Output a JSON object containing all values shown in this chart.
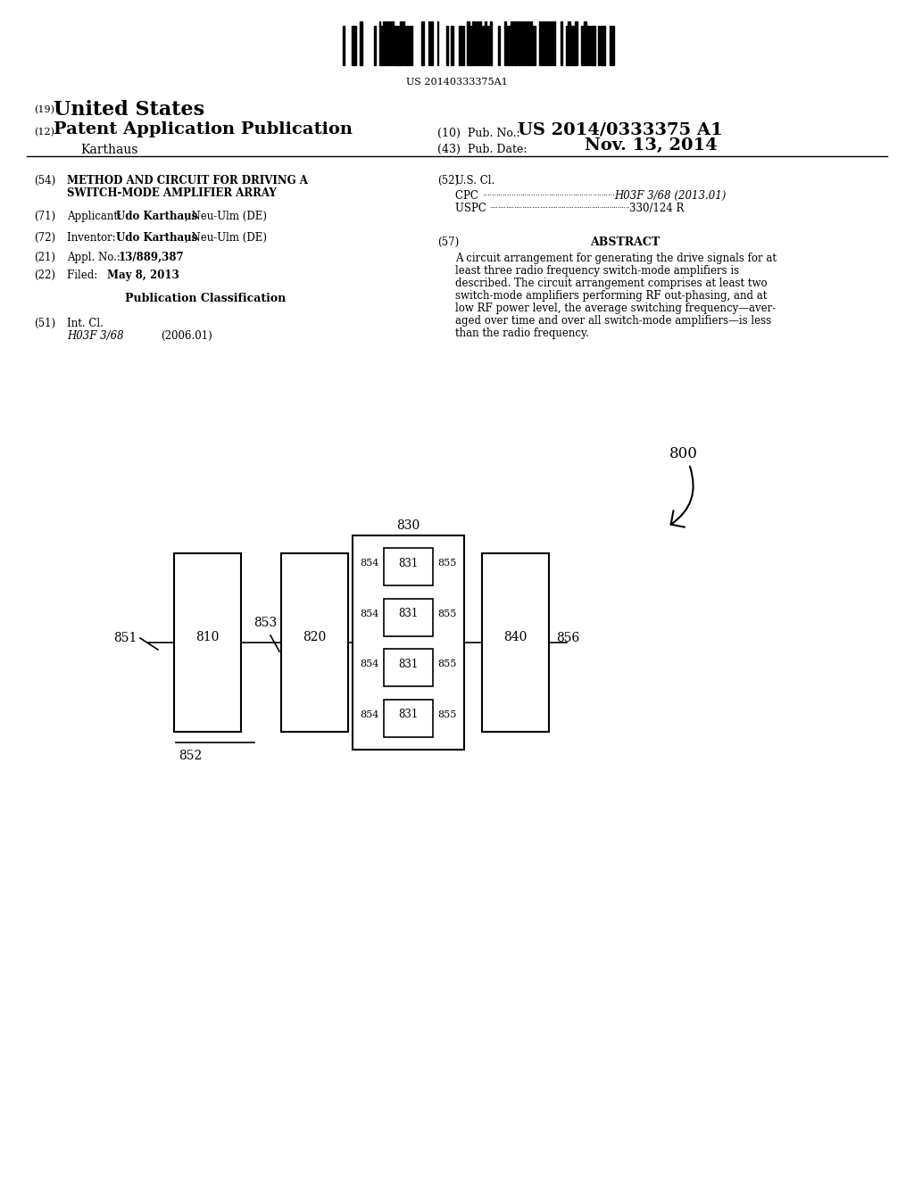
{
  "title": "US 20140333375A1",
  "patent_number": "US 2014/0333375 A1",
  "pub_date": "Nov. 13, 2014",
  "country": "United States",
  "doc_type": "Patent Application Publication",
  "inventor_name": "Karthaus",
  "field_19": "(19)",
  "field_12": "(12)",
  "field_10_label": "(10)  Pub. No.:",
  "field_43_label": "(43)  Pub. Date:",
  "section54_label": "(54)",
  "section54_title_line1": "METHOD AND CIRCUIT FOR DRIVING A",
  "section54_title_line2": "SWITCH-MODE AMPLIFIER ARRAY",
  "section71_label": "(71)",
  "section71_text": "Applicant:  Udo Karthaus, Neu-Ulm (DE)",
  "section72_label": "(72)",
  "section72_text": "Inventor:   Udo Karthaus, Neu-Ulm (DE)",
  "section21_label": "(21)",
  "section21_text": "Appl. No.: 13/889,387",
  "section22_label": "(22)",
  "section22_text": "Filed:        May 8, 2013",
  "pub_class_title": "Publication Classification",
  "section51_label": "(51)",
  "section51_intcl": "Int. Cl.",
  "section51_class": "H03F 3/68",
  "section51_year": "(2006.01)",
  "section52_label": "(52)",
  "section52_uscl": "U.S. Cl.",
  "section52_cpc_label": "CPC",
  "section52_cpc_val": "H03F 3/68 (2013.01)",
  "section52_uspc_label": "USPC",
  "section52_uspc_val": "330/124 R",
  "section57_label": "(57)",
  "section57_title": "ABSTRACT",
  "abstract_text": "A circuit arrangement for generating the drive signals for at least three radio frequency switch-mode amplifiers is described. The circuit arrangement comprises at least two switch-mode amplifiers performing RF out-phasing, and at low RF power level, the average switching frequency—averaged over time and over all switch-mode amplifiers—is less than the radio frequency.",
  "diagram_label": "800",
  "bg_color": "#ffffff",
  "text_color": "#000000"
}
